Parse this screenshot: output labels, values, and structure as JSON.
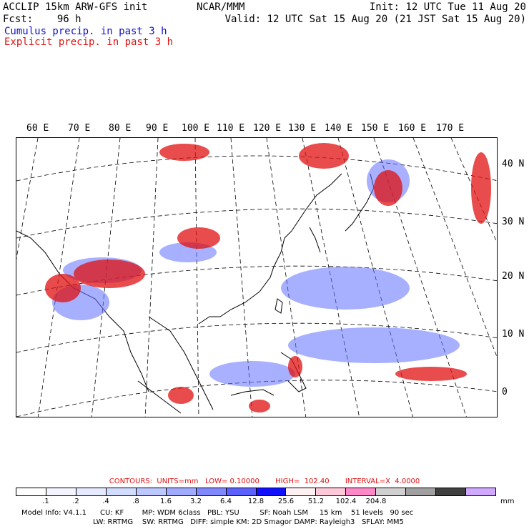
{
  "header": {
    "model": "ACCLIP 15km ARW-GFS init",
    "fcst_label": "Fcst:",
    "fcst_value": "96 h",
    "center": "NCAR/MMM",
    "init": "Init: 12 UTC Tue 11 Aug 20",
    "valid": "Valid: 12 UTC Sat 15 Aug 20 (21 JST Sat 15 Aug 20)",
    "legend_cumulus": "Cumulus precip. in past 3 h",
    "legend_explicit": "Explicit precip. in past 3 h"
  },
  "map": {
    "lon_labels": [
      "60 E",
      "70 E",
      "80 E",
      "90 E",
      "100 E",
      "110 E",
      "120 E",
      "130 E",
      "140 E",
      "150 E",
      "160 E",
      "170 E"
    ],
    "lat_labels": [
      "40 N",
      "30 N",
      "20 N",
      "10 N",
      "0"
    ]
  },
  "contours": {
    "line": "CONTOURS:  UNITS=mm   LOW= 0.10000       HIGH=  102.40       INTERVAL=X  4.0000"
  },
  "colorbar": {
    "colors": [
      "#ffffff",
      "#f4f4ff",
      "#e6eaff",
      "#d2dcff",
      "#bcc8ff",
      "#a0aaff",
      "#8088ff",
      "#5c60ff",
      "#1010ff",
      "#fff0f2",
      "#ffc8d8",
      "#ff88c8",
      "#d0d0d0",
      "#a0a0a0",
      "#404040",
      "#d0a8ff"
    ],
    "ticks": [
      ".1",
      ".2",
      ".4",
      ".8",
      "1.6",
      "3.2",
      "6.4",
      "12.8",
      "25.6",
      "51.2",
      "102.4",
      "204.8"
    ],
    "units": "mm"
  },
  "footer": {
    "line1": "Model Info: V4.1.1      CU: KF        MP: WDM 6class   PBL: YSU         SF: Noah LSM     15 km    51 levels   90 sec",
    "line2": "LW: RRTMG    SW: RRTMG   DIFF: simple KM: 2D Smagor DAMP: Rayleigh3   SFLAY: MM5"
  }
}
